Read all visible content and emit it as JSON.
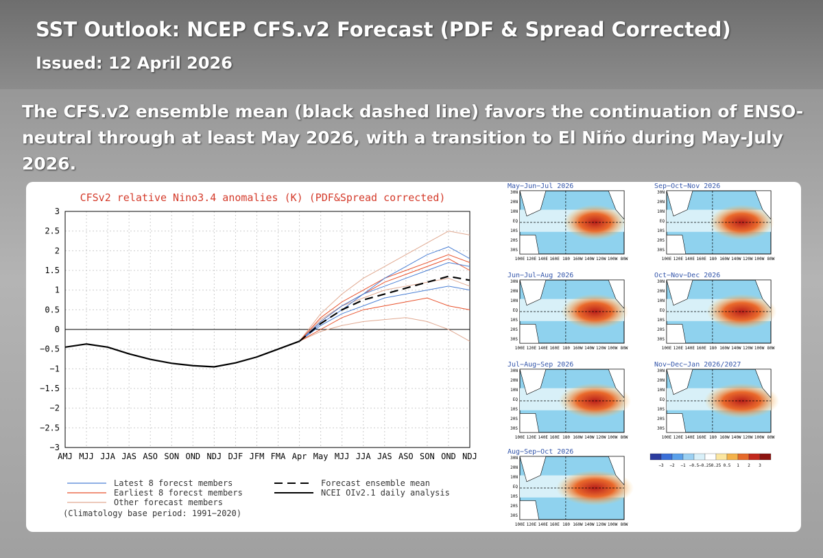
{
  "header": {
    "title": "SST Outlook: NCEP CFS.v2 Forecast (PDF & Spread Corrected)",
    "issued": "Issued: 12 April 2026"
  },
  "summary": [
    "The CFS.v2 ensemble mean (black dashed line) favors the continuation of ENSO-",
    "neutral through at least May 2026, with a transition to El Niño during May-July",
    "2026."
  ],
  "chart_data": {
    "type": "line",
    "title": "CFSv2 relative Nino3.4 anomalies (K) (PDF&Spread corrected)",
    "categories": [
      "AMJ",
      "MJJ",
      "JJA",
      "JAS",
      "ASO",
      "SON",
      "OND",
      "NDJ",
      "DJF",
      "JFM",
      "FMA",
      "Apr",
      "May",
      "MJJ",
      "JJA",
      "JAS",
      "ASO",
      "SON",
      "OND",
      "NDJ"
    ],
    "ylim": [
      -3,
      3
    ],
    "yticks": [
      {
        "value": -3,
        "label": "−3"
      },
      {
        "value": -2.5,
        "label": "−2.5"
      },
      {
        "value": -2,
        "label": "−2"
      },
      {
        "value": -1.5,
        "label": "−1.5"
      },
      {
        "value": -1,
        "label": "−1"
      },
      {
        "value": -0.5,
        "label": "−0.5"
      },
      0,
      0.5,
      1,
      1.5,
      2,
      2.5,
      3
    ],
    "grid": true,
    "series": [
      {
        "name": "Other forecast members",
        "color": "#e0a890",
        "members": [
          [
            null,
            null,
            null,
            null,
            null,
            null,
            null,
            null,
            null,
            null,
            null,
            -0.3,
            0.4,
            0.9,
            1.3,
            1.6,
            1.9,
            2.2,
            2.5,
            2.4
          ],
          [
            null,
            null,
            null,
            null,
            null,
            null,
            null,
            null,
            null,
            null,
            null,
            -0.3,
            -0.05,
            0.1,
            0.2,
            0.25,
            0.3,
            0.2,
            0.0,
            -0.3
          ],
          [
            null,
            null,
            null,
            null,
            null,
            null,
            null,
            null,
            null,
            null,
            null,
            -0.3,
            0.25,
            0.6,
            0.8,
            1.0,
            1.1,
            1.2,
            1.3,
            1.1
          ]
        ]
      },
      {
        "name": "Earliest 8 forecst members",
        "color": "#e8502a",
        "members": [
          [
            null,
            null,
            null,
            null,
            null,
            null,
            null,
            null,
            null,
            null,
            null,
            -0.3,
            0.3,
            0.7,
            1.0,
            1.3,
            1.5,
            1.7,
            1.9,
            1.7
          ],
          [
            null,
            null,
            null,
            null,
            null,
            null,
            null,
            null,
            null,
            null,
            null,
            -0.3,
            0.0,
            0.3,
            0.5,
            0.6,
            0.7,
            0.8,
            0.6,
            0.5
          ],
          [
            null,
            null,
            null,
            null,
            null,
            null,
            null,
            null,
            null,
            null,
            null,
            -0.3,
            0.2,
            0.6,
            0.9,
            1.2,
            1.4,
            1.6,
            1.8,
            1.5
          ]
        ]
      },
      {
        "name": "Latest 8 forecst members",
        "color": "#4a7fd4",
        "members": [
          [
            null,
            null,
            null,
            null,
            null,
            null,
            null,
            null,
            null,
            null,
            null,
            -0.3,
            0.2,
            0.6,
            0.9,
            1.1,
            1.3,
            1.5,
            1.7,
            1.6
          ],
          [
            null,
            null,
            null,
            null,
            null,
            null,
            null,
            null,
            null,
            null,
            null,
            -0.3,
            0.1,
            0.4,
            0.6,
            0.8,
            0.9,
            1.0,
            1.1,
            1.0
          ],
          [
            null,
            null,
            null,
            null,
            null,
            null,
            null,
            null,
            null,
            null,
            null,
            -0.3,
            0.15,
            0.5,
            0.9,
            1.3,
            1.6,
            1.9,
            2.1,
            1.8
          ]
        ]
      },
      {
        "name": "Forecast ensemble mean",
        "color": "#000000",
        "dashed": true,
        "values": [
          null,
          null,
          null,
          null,
          null,
          null,
          null,
          null,
          null,
          null,
          null,
          -0.3,
          0.15,
          0.5,
          0.75,
          0.9,
          1.05,
          1.2,
          1.35,
          1.25
        ]
      },
      {
        "name": "NCEI OIv2.1 daily analysis",
        "color": "#000000",
        "values": [
          -0.45,
          -0.37,
          -0.45,
          -0.62,
          -0.76,
          -0.86,
          -0.92,
          -0.95,
          -0.85,
          -0.7,
          -0.5,
          -0.3,
          null,
          null,
          null,
          null,
          null,
          null,
          null,
          null
        ]
      }
    ],
    "note": "(Climatology base period: 1991−2020)"
  },
  "maps": {
    "titles": [
      "May−Jun−Jul 2026",
      "Sep−Oct−Nov 2026",
      "Jun−Jul−Aug 2026",
      "Oct−Nov−Dec 2026",
      "Jul−Aug−Sep 2026",
      "Nov−Dec−Jan 2026/2027",
      "Aug−Sep−Oct 2026"
    ],
    "lat_labels": [
      "30N",
      "20N",
      "10N",
      "EQ",
      "10S",
      "20S",
      "30S"
    ],
    "lon_labels": [
      "100E",
      "120E",
      "140E",
      "160E",
      "180",
      "160W",
      "140W",
      "120W",
      "100W",
      "80W"
    ],
    "colorbar": [
      "−3",
      "−2",
      "−1",
      "−0.5",
      "−0.25",
      "0.25",
      "0.5",
      "1",
      "2",
      "3"
    ]
  }
}
